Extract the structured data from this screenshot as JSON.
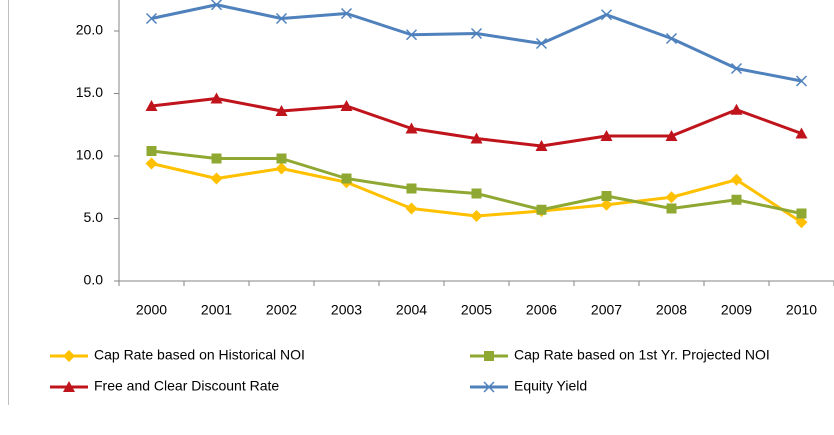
{
  "chart_data": {
    "type": "line",
    "categories": [
      "2000",
      "2001",
      "2002",
      "2003",
      "2004",
      "2005",
      "2006",
      "2007",
      "2008",
      "2009",
      "2010"
    ],
    "series": [
      {
        "name": "Cap Rate based on Historical NOI",
        "color": "#ffc000",
        "marker": "diamond",
        "values": [
          9.4,
          8.2,
          9.0,
          7.9,
          5.8,
          5.2,
          5.6,
          6.1,
          6.7,
          8.1,
          4.7
        ]
      },
      {
        "name": "Cap Rate based on 1st Yr. Projected NOI",
        "color": "#8fa832",
        "marker": "square",
        "values": [
          10.4,
          9.8,
          9.8,
          8.2,
          7.4,
          7.0,
          5.7,
          6.8,
          5.8,
          6.5,
          5.4
        ]
      },
      {
        "name": "Free and Clear Discount Rate",
        "color": "#c0141c",
        "marker": "triangle",
        "values": [
          14.0,
          14.6,
          13.6,
          14.0,
          12.2,
          11.4,
          10.8,
          11.6,
          11.6,
          13.7,
          11.8
        ]
      },
      {
        "name": "Equity Yield",
        "color": "#4f81bd",
        "marker": "x",
        "values": [
          21.0,
          22.1,
          21.0,
          21.4,
          19.7,
          19.8,
          19.0,
          21.3,
          19.4,
          17.0,
          16.0
        ]
      }
    ],
    "ylim": [
      0,
      25
    ],
    "yticks": [
      {
        "value": 0,
        "label": "0.0"
      },
      {
        "value": 5,
        "label": "5.0"
      },
      {
        "value": 10,
        "label": "10.0"
      },
      {
        "value": 15,
        "label": "15.0"
      },
      {
        "value": 20,
        "label": "20.0"
      }
    ]
  }
}
